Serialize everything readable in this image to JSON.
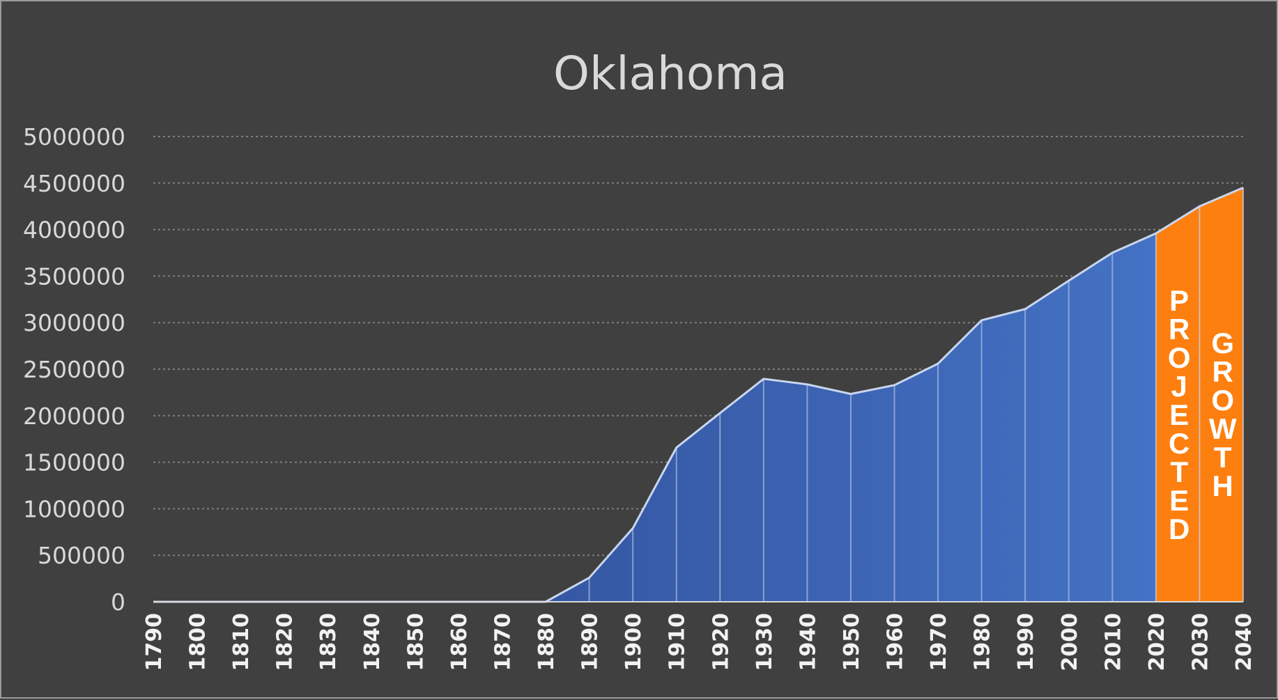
{
  "chart_data": {
    "type": "area",
    "title": "Oklahoma",
    "xlabel": "",
    "ylabel": "",
    "x": [
      "1790",
      "1800",
      "1810",
      "1820",
      "1830",
      "1840",
      "1850",
      "1860",
      "1870",
      "1880",
      "1890",
      "1900",
      "1910",
      "1920",
      "1930",
      "1940",
      "1950",
      "1960",
      "1970",
      "1980",
      "1990",
      "2000",
      "2010",
      "2020",
      "2030",
      "2040"
    ],
    "values": [
      0,
      0,
      0,
      0,
      0,
      0,
      0,
      0,
      0,
      0,
      258657,
      790391,
      1657155,
      2028283,
      2396040,
      2336434,
      2233351,
      2328284,
      2559229,
      3025290,
      3145585,
      3450654,
      3751351,
      3959353,
      4250000,
      4450000
    ],
    "projected_from": "2020",
    "ylim": [
      0,
      5000000
    ],
    "yticks": [
      "0",
      "500000",
      "1000000",
      "1500000",
      "2000000",
      "2500000",
      "3000000",
      "3500000",
      "4000000",
      "4500000",
      "5000000"
    ],
    "grid": true,
    "annotations": [
      "PROJECTED",
      "GROWTH"
    ],
    "colors": {
      "background": "#404040",
      "historic_fill": "#4472c4",
      "projected_fill": "#fd7f10",
      "outline": "#c9d6ee",
      "grid": "#7f7f7f",
      "text": "#d9d9d9"
    }
  }
}
